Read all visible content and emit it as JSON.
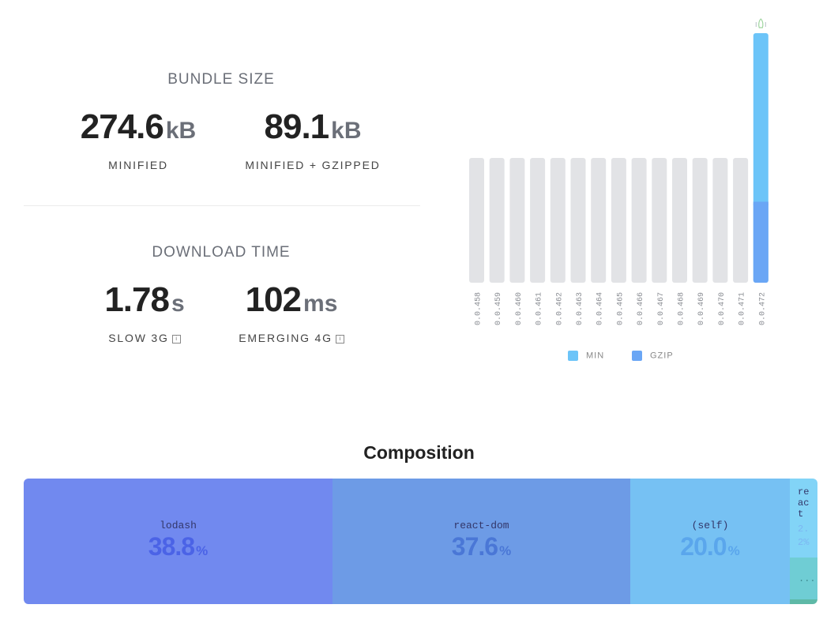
{
  "bundle_size": {
    "title": "BUNDLE SIZE",
    "minified": {
      "value": "274.6",
      "unit": "kB",
      "label": "MINIFIED"
    },
    "gzipped": {
      "value": "89.1",
      "unit": "kB",
      "label": "MINIFIED + GZIPPED"
    }
  },
  "download_time": {
    "title": "DOWNLOAD TIME",
    "slow3g": {
      "value": "1.78",
      "unit": "s",
      "label": "SLOW 3G",
      "info": "i"
    },
    "emerging4g": {
      "value": "102",
      "unit": "ms",
      "label": "EMERGING 4G",
      "info": "i"
    }
  },
  "chart_data": {
    "type": "bar",
    "categories": [
      "0.0.458",
      "0.0.459",
      "0.0.460",
      "0.0.461",
      "0.0.462",
      "0.0.463",
      "0.0.464",
      "0.0.465",
      "0.0.466",
      "0.0.467",
      "0.0.468",
      "0.0.469",
      "0.0.470",
      "0.0.471",
      "0.0.472"
    ],
    "series": [
      {
        "name": "MIN",
        "color": "#6cc4f8",
        "values": [
          null,
          null,
          null,
          null,
          null,
          null,
          null,
          null,
          null,
          null,
          null,
          null,
          null,
          null,
          274.6
        ]
      },
      {
        "name": "GZIP",
        "color": "#6aa6f5",
        "values": [
          null,
          null,
          null,
          null,
          null,
          null,
          null,
          null,
          null,
          null,
          null,
          null,
          null,
          null,
          89.1
        ]
      }
    ],
    "placeholder_color": "#e2e3e6",
    "highlighted": "0.0.472",
    "legend": "bottom"
  },
  "composition": {
    "title": "Composition",
    "items": [
      {
        "name": "lodash",
        "percent": "38.8",
        "sign": "%",
        "color": "#7189ef",
        "text_color": "#4b63e6"
      },
      {
        "name": "react-dom",
        "percent": "37.6",
        "sign": "%",
        "color": "#6d9be6",
        "text_color": "#4a77d6"
      },
      {
        "name": "(self)",
        "percent": "20.0",
        "sign": "%",
        "color": "#76c1f3",
        "text_color": "#5aa6ec"
      },
      {
        "name": "react",
        "percent": "2.",
        "sign": "2%",
        "color": "#82d4f7",
        "text_color": "#7cb6f2"
      }
    ],
    "extra_tiles": [
      {
        "label": "...",
        "color": "#6fcdd4"
      },
      {
        "label": "...",
        "color": "#5eb9a7"
      }
    ]
  }
}
